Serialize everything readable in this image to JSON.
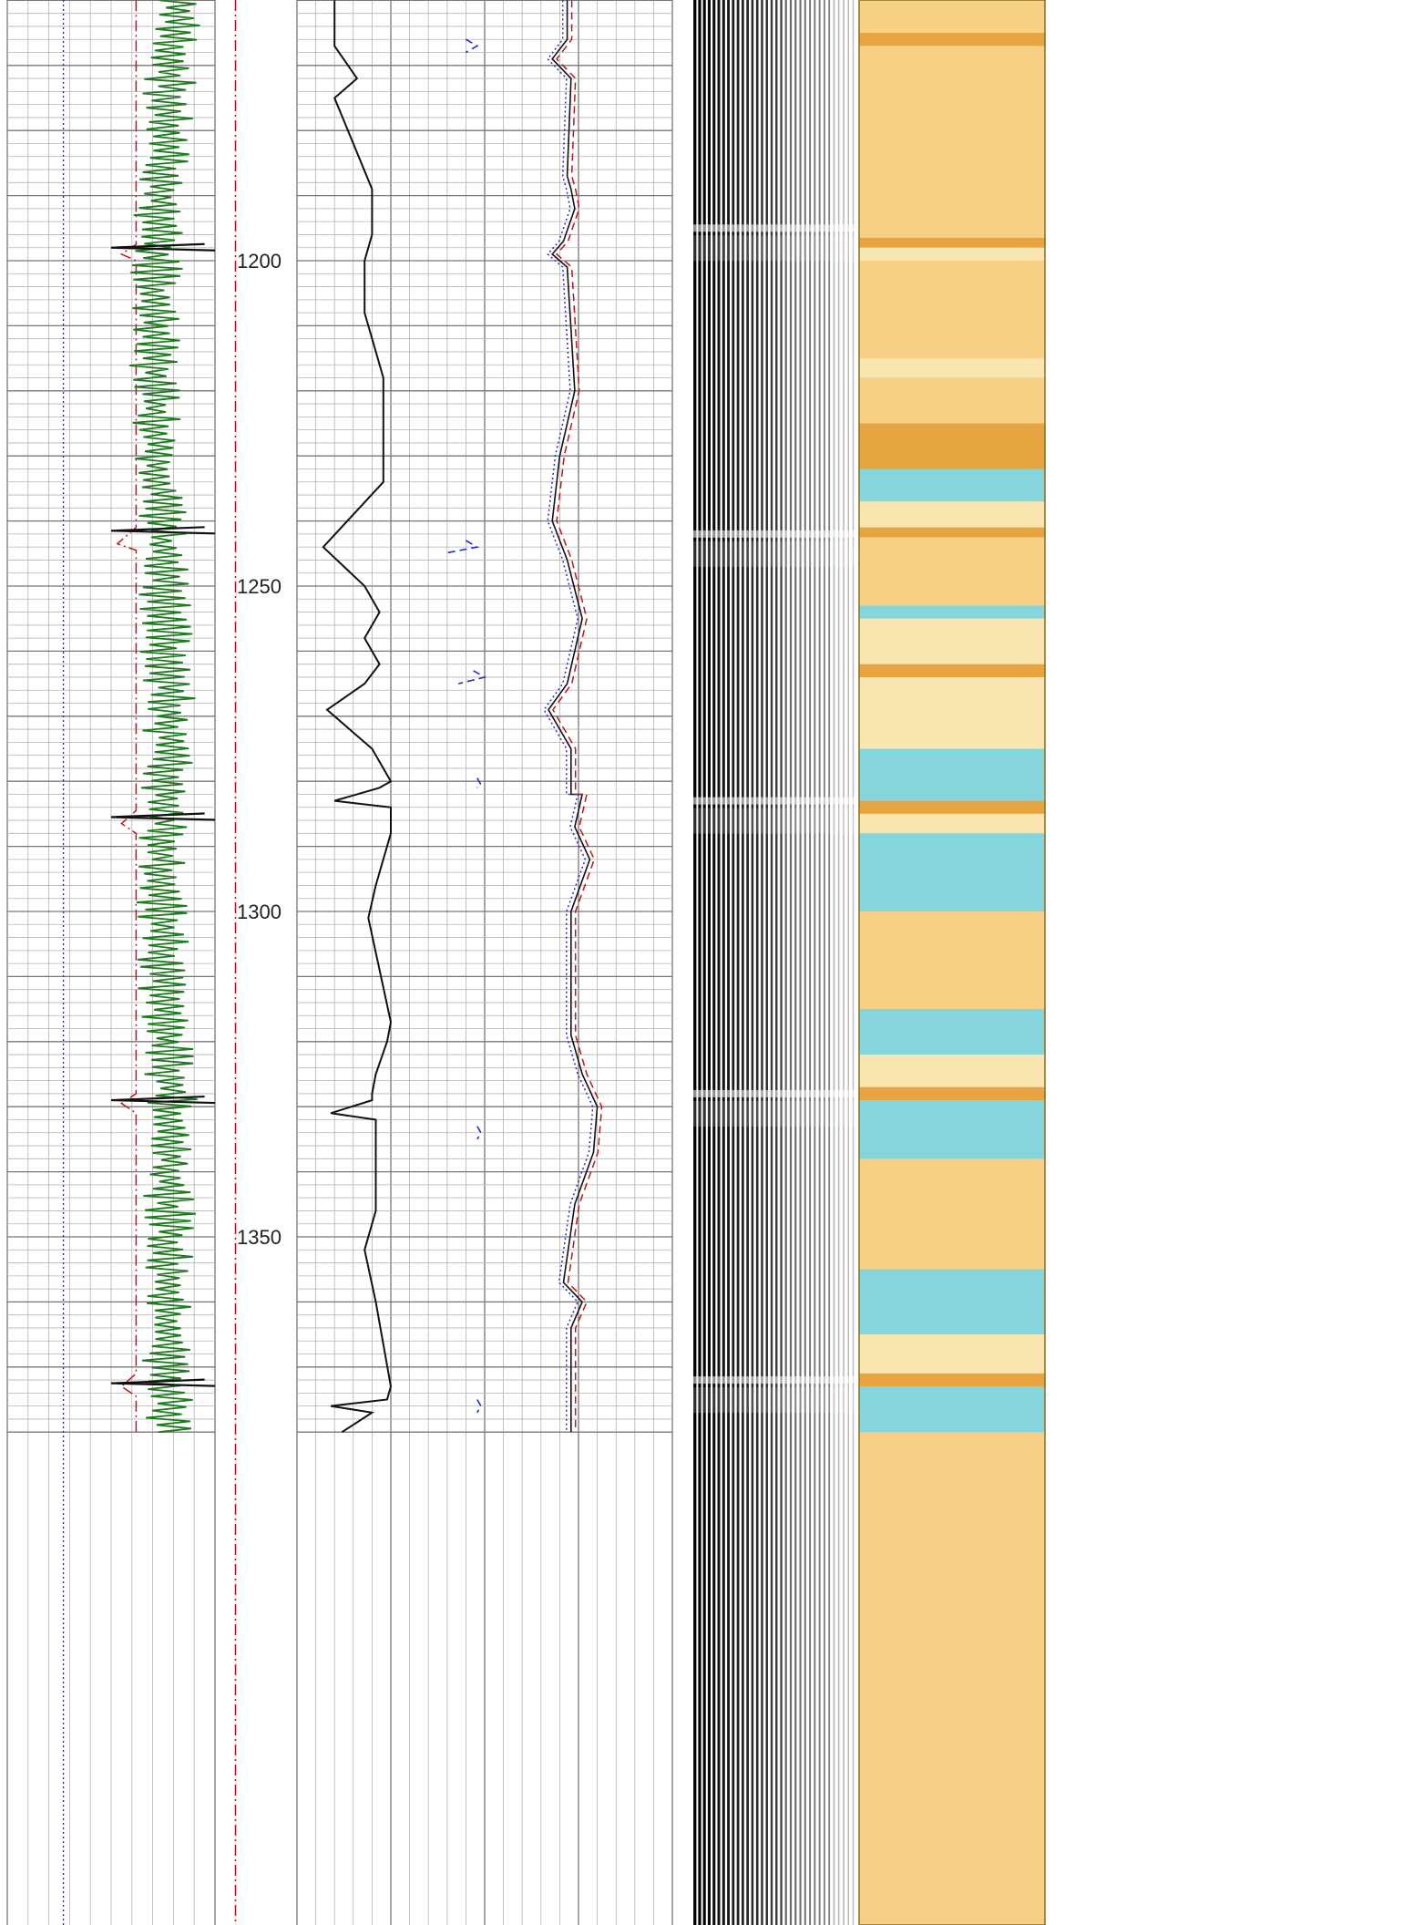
{
  "chart_data": {
    "type": "line",
    "title": "",
    "depth_axis": {
      "range": [
        1160,
        1380
      ],
      "labeled_depths": [
        "1200",
        "1250",
        "1300",
        "1350"
      ]
    },
    "tracks": [
      {
        "name": "track-1",
        "grid": true,
        "series": [
          {
            "role": "flat",
            "color": "#1f2ad8",
            "style": "dotted",
            "x": 0.27,
            "depth": [
              1160,
              1380
            ]
          },
          {
            "role": "stepped",
            "color": "#c0141a",
            "style": "dashdot",
            "x": [
              0.62,
              0.62,
              0.55,
              0.62,
              0.62,
              0.53,
              0.62,
              0.62,
              0.55,
              0.62,
              0.62,
              0.55,
              0.62,
              0.62,
              0.55,
              0.62,
              0.62
            ],
            "depth": [
              1160,
              1197.5,
              1199,
              1200,
              1241,
              1243.5,
              1244.5,
              1284.5,
              1286.5,
              1288,
              1328,
              1329.5,
              1331,
              1371,
              1373,
              1374.5,
              1380
            ]
          },
          {
            "role": "oscillating",
            "color": "#1e7a1e",
            "style": "solid",
            "amplitude": 0.12,
            "center": 0.78,
            "x": [
              0.82,
              0.76,
              0.72,
              0.7,
              0.72,
              0.74,
              0.76,
              0.78,
              0.76,
              0.74,
              0.76,
              0.79,
              0.78,
              0.76,
              0.78
            ],
            "depth": [
              1160,
              1180,
              1200,
              1210,
              1225,
              1240,
              1255,
              1270,
              1285,
              1300,
              1315,
              1330,
              1345,
              1360,
              1380
            ]
          },
          {
            "role": "spikes",
            "color": "#111111",
            "style": "solid",
            "depth": [
              1198,
              1241.5,
              1285.5,
              1329,
              1372.5
            ]
          }
        ]
      },
      {
        "name": "track-2",
        "grid": false,
        "series": [
          {
            "role": "dashdot",
            "color": "#c0141a",
            "style": "dashdot",
            "x": 0.25,
            "depth": [
              1160,
              1380
            ]
          }
        ]
      },
      {
        "name": "track-3",
        "grid": true,
        "series": [
          {
            "role": "curve",
            "color": "#111111",
            "style": "solid",
            "x": [
              0.1,
              0.1,
              0.16,
              0.1,
              0.2,
              0.2,
              0.19,
              0.18,
              0.18,
              0.23,
              0.23,
              0.07,
              0.18,
              0.22,
              0.18,
              0.22,
              0.18,
              0.08,
              0.2,
              0.25,
              0.22,
              0.1,
              0.25,
              0.25,
              0.21,
              0.19,
              0.25,
              0.24,
              0.21,
              0.2,
              0.2,
              0.09,
              0.21,
              0.21,
              0.18,
              0.21,
              0.25,
              0.24,
              0.09,
              0.2,
              0.12
            ],
            "depth": [
              1160,
              1167,
              1172,
              1175,
              1189,
              1196,
              1198,
              1200,
              1208,
              1218,
              1234,
              1244,
              1250,
              1254,
              1258,
              1262,
              1265,
              1269,
              1275,
              1280,
              1281,
              1283,
              1284,
              1288,
              1296,
              1301,
              1317,
              1320,
              1325,
              1328,
              1329,
              1331,
              1332,
              1346,
              1352,
              1360,
              1373,
              1375,
              1376,
              1377,
              1380
            ]
          },
          {
            "role": "blue-segments",
            "color": "#1f2ad8",
            "style": "dashed",
            "segments": [
              {
                "x": [
                  0.45,
                  0.48,
                  0.45
                ],
                "depth": [
                  1166,
                  1167,
                  1168
                ]
              },
              {
                "x": [
                  0.45,
                  0.48,
                  0.39
                ],
                "depth": [
                  1243,
                  1244,
                  1245
                ]
              },
              {
                "x": [
                  0.47,
                  0.5,
                  0.43
                ],
                "depth": [
                  1263,
                  1264,
                  1265
                ]
              },
              {
                "x": [
                  0.48,
                  0.49,
                  0.48
                ],
                "depth": [
                  1279.5,
                  1280.5,
                  1281
                ]
              },
              {
                "x": [
                  0.48,
                  0.49,
                  0.48
                ],
                "depth": [
                  1333,
                  1334,
                  1335
                ]
              },
              {
                "x": [
                  0.48,
                  0.49,
                  0.48
                ],
                "depth": [
                  1375,
                  1376,
                  1377
                ]
              }
            ]
          },
          {
            "role": "solid-right",
            "color": "#111111",
            "style": "solid",
            "x": [
              0.72,
              0.72,
              0.68,
              0.73,
              0.72,
              0.73,
              0.74,
              0.71,
              0.68,
              0.72,
              0.74,
              0.7,
              0.68,
              0.72,
              0.76,
              0.72,
              0.67,
              0.73,
              0.73,
              0.76,
              0.74,
              0.78,
              0.73,
              0.73,
              0.76,
              0.8,
              0.79,
              0.74,
              0.71,
              0.76,
              0.73,
              0.73,
              0.73,
              0.73
            ],
            "depth": [
              1160,
              1166,
              1169,
              1172,
              1187,
              1189,
              1192,
              1197,
              1199,
              1201,
              1220,
              1230,
              1240,
              1246,
              1255,
              1265,
              1269,
              1275,
              1282,
              1282,
              1287,
              1292,
              1300,
              1319,
              1325,
              1330,
              1337,
              1345,
              1357,
              1360,
              1364,
              1373,
              1375,
              1380
            ]
          },
          {
            "role": "blue-right",
            "color": "#1f2ad8",
            "style": "dotted",
            "offset": -0.012
          },
          {
            "role": "red-right",
            "color": "#c0141a",
            "style": "dashed",
            "offset": 0.012
          }
        ]
      },
      {
        "name": "track-4",
        "type": "waveform",
        "band_depths": [
          1195,
          1242,
          1283,
          1328,
          1372
        ]
      },
      {
        "name": "track-5",
        "type": "heatmap",
        "colors": {
          "tan": "#f5cf85",
          "light": "#f8e7b5",
          "dark": "#e5a23d",
          "cyan": "#79d6e6"
        },
        "bands": [
          {
            "depth": [
              1160,
              1165
            ],
            "tone": "tan"
          },
          {
            "depth": [
              1165,
              1167
            ],
            "tone": "dark"
          },
          {
            "depth": [
              1167,
              1196
            ],
            "tone": "tan"
          },
          {
            "depth": [
              1196.5,
              1198
            ],
            "tone": "dark"
          },
          {
            "depth": [
              1198,
              1200
            ],
            "tone": "light"
          },
          {
            "depth": [
              1200,
              1215
            ],
            "tone": "tan"
          },
          {
            "depth": [
              1215,
              1218
            ],
            "tone": "light"
          },
          {
            "depth": [
              1218,
              1225
            ],
            "tone": "tan"
          },
          {
            "depth": [
              1225,
              1232
            ],
            "tone": "dark"
          },
          {
            "depth": [
              1232,
              1237
            ],
            "tone": "cyan"
          },
          {
            "depth": [
              1237,
              1241
            ],
            "tone": "light"
          },
          {
            "depth": [
              1241,
              1242.5
            ],
            "tone": "dark"
          },
          {
            "depth": [
              1242.5,
              1253
            ],
            "tone": "tan"
          },
          {
            "depth": [
              1253,
              1255
            ],
            "tone": "cyan"
          },
          {
            "depth": [
              1255,
              1262
            ],
            "tone": "light"
          },
          {
            "depth": [
              1262,
              1264
            ],
            "tone": "dark"
          },
          {
            "depth": [
              1264,
              1275
            ],
            "tone": "light"
          },
          {
            "depth": [
              1275,
              1283
            ],
            "tone": "cyan"
          },
          {
            "depth": [
              1283,
              1285
            ],
            "tone": "dark"
          },
          {
            "depth": [
              1285,
              1288
            ],
            "tone": "light"
          },
          {
            "depth": [
              1288,
              1300
            ],
            "tone": "cyan"
          },
          {
            "depth": [
              1300,
              1315
            ],
            "tone": "tan"
          },
          {
            "depth": [
              1315,
              1322
            ],
            "tone": "cyan"
          },
          {
            "depth": [
              1322,
              1327
            ],
            "tone": "light"
          },
          {
            "depth": [
              1327,
              1329
            ],
            "tone": "dark"
          },
          {
            "depth": [
              1329,
              1338
            ],
            "tone": "cyan"
          },
          {
            "depth": [
              1338,
              1355
            ],
            "tone": "tan"
          },
          {
            "depth": [
              1355,
              1365
            ],
            "tone": "cyan"
          },
          {
            "depth": [
              1365,
              1371
            ],
            "tone": "light"
          },
          {
            "depth": [
              1371,
              1373
            ],
            "tone": "dark"
          },
          {
            "depth": [
              1373,
              1380
            ],
            "tone": "cyan"
          }
        ]
      }
    ]
  }
}
